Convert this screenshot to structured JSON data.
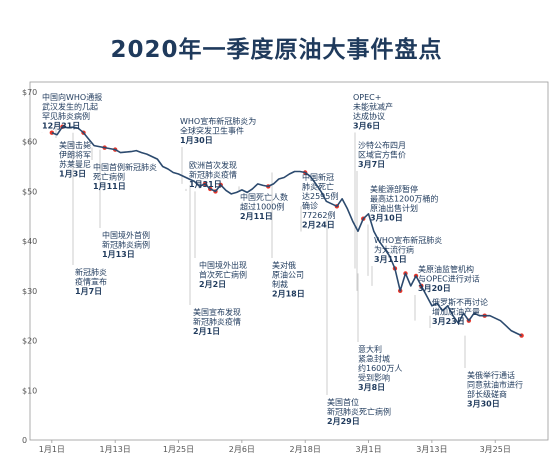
{
  "title": "2020年一季度原油大事件盘点",
  "chart_data": {
    "type": "line",
    "title": "2020年一季度原油大事件盘点",
    "xlabel": "",
    "ylabel": "",
    "y_ticks": [
      "$70",
      "$60",
      "$50",
      "$40",
      "$30",
      "$20",
      "$10",
      "0"
    ],
    "ylim": [
      0,
      72
    ],
    "x_ticks": [
      {
        "label": "1月1日",
        "day": 1
      },
      {
        "label": "1月13日",
        "day": 13
      },
      {
        "label": "1月25日",
        "day": 25
      },
      {
        "label": "2月6日",
        "day": 37
      },
      {
        "label": "2月18日",
        "day": 49
      },
      {
        "label": "3月1日",
        "day": 61
      },
      {
        "label": "3月13日",
        "day": 73
      },
      {
        "label": "3月25日",
        "day": 85
      }
    ],
    "xlim": [
      -2,
      95
    ],
    "line_color": "#2c4a6e",
    "marker_color": "#e8362a",
    "series": [
      {
        "values": [
          [
            1,
            61.8
          ],
          [
            2,
            61.4
          ],
          [
            3,
            63.0
          ],
          [
            4,
            62.8
          ],
          [
            5,
            62.9
          ],
          [
            6,
            62.7
          ],
          [
            7,
            61.8
          ],
          [
            8,
            60.5
          ],
          [
            9,
            59.2
          ],
          [
            10,
            59.0
          ],
          [
            11,
            58.8
          ],
          [
            12,
            58.6
          ],
          [
            13,
            58.4
          ],
          [
            14,
            57.8
          ],
          [
            15,
            57.9
          ],
          [
            16,
            58.0
          ],
          [
            17,
            58.2
          ],
          [
            18,
            57.8
          ],
          [
            19,
            57.5
          ],
          [
            20,
            57.0
          ],
          [
            21,
            56.5
          ],
          [
            22,
            55.0
          ],
          [
            23,
            54.5
          ],
          [
            24,
            53.8
          ],
          [
            25,
            53.5
          ],
          [
            26,
            53.0
          ],
          [
            27,
            52.5
          ],
          [
            28,
            52.0
          ],
          [
            29,
            51.0
          ],
          [
            30,
            51.5
          ],
          [
            31,
            50.5
          ],
          [
            32,
            50.0
          ],
          [
            33,
            51.3
          ],
          [
            34,
            50.2
          ],
          [
            35,
            49.5
          ],
          [
            36,
            49.8
          ],
          [
            37,
            50.3
          ],
          [
            38,
            49.8
          ],
          [
            39,
            50.5
          ],
          [
            40,
            51.5
          ],
          [
            41,
            51.2
          ],
          [
            42,
            51.0
          ],
          [
            43,
            51.5
          ],
          [
            44,
            52.5
          ],
          [
            45,
            52.8
          ],
          [
            46,
            53.5
          ],
          [
            47,
            54.0
          ],
          [
            48,
            54.0
          ],
          [
            49,
            53.8
          ],
          [
            50,
            53.0
          ],
          [
            51,
            51.5
          ],
          [
            52,
            50.0
          ],
          [
            53,
            48.0
          ],
          [
            54,
            47.5
          ],
          [
            55,
            47.0
          ],
          [
            56,
            48.5
          ],
          [
            57,
            46.5
          ],
          [
            58,
            44.0
          ],
          [
            59,
            42.0
          ],
          [
            60,
            44.5
          ],
          [
            61,
            45.5
          ],
          [
            62,
            42.0
          ],
          [
            63,
            40.0
          ],
          [
            64,
            38.5
          ],
          [
            65,
            37.0
          ],
          [
            66,
            34.5
          ],
          [
            67,
            30.0
          ],
          [
            68,
            33.5
          ],
          [
            69,
            31.0
          ],
          [
            70,
            33.0
          ],
          [
            71,
            31.0
          ],
          [
            72,
            29.0
          ],
          [
            73,
            27.0
          ],
          [
            74,
            27.5
          ],
          [
            75,
            26.0
          ],
          [
            76,
            27.0
          ],
          [
            77,
            25.0
          ],
          [
            78,
            23.5
          ],
          [
            79,
            25.5
          ],
          [
            80,
            24.0
          ],
          [
            81,
            25.5
          ],
          [
            82,
            25.0
          ],
          [
            83,
            25.0
          ],
          [
            84,
            25.0
          ],
          [
            85,
            24.5
          ],
          [
            86,
            24.0
          ],
          [
            87,
            23.0
          ],
          [
            88,
            22.0
          ],
          [
            89,
            21.5
          ],
          [
            90,
            21.0
          ]
        ]
      }
    ],
    "events": [
      {
        "day": 1,
        "date": "12月31日",
        "text": [
          "中国向WHO通报",
          "武汉发生的几起",
          "罕见肺炎病例"
        ]
      },
      {
        "day": 3,
        "date": "1月3日",
        "text": [
          "美国击毙",
          "伊朗将军",
          "苏莱曼尼"
        ]
      },
      {
        "day": 7,
        "date": "1月7日",
        "text": [
          "新冠肺炎",
          "疫情宣布"
        ]
      },
      {
        "day": 11,
        "date": "1月11日",
        "text": [
          "中国首例新冠肺炎",
          "死亡病例"
        ]
      },
      {
        "day": 13,
        "date": "1月13日",
        "text": [
          "中国境外首例",
          "新冠肺炎病例"
        ]
      },
      {
        "day": 30,
        "date": "1月30日",
        "text": [
          "WHO宣布新冠肺炎为",
          "全球突发卫生事件"
        ]
      },
      {
        "day": 31,
        "date": "1月31日",
        "text": [
          "欧洲首次发现",
          "新冠肺炎疫情"
        ]
      },
      {
        "day": 32,
        "date": "2月2日",
        "text": [
          "中国境外出现",
          "首次死亡病例"
        ]
      },
      {
        "day": 33,
        "date": "2月1日",
        "text": [
          "美国宣布发现",
          "新冠肺炎疫情"
        ]
      },
      {
        "day": 42,
        "date": "2月11日",
        "text": [
          "中国死亡人数",
          "超过1000例"
        ]
      },
      {
        "day": 49,
        "date": "2月18日",
        "text": [
          "美对俄",
          "原油公司",
          "制裁"
        ]
      },
      {
        "day": 55,
        "date": "2月24日",
        "text": [
          "中国新冠",
          "肺炎死亡",
          "达2595例",
          "确诊",
          "77262例"
        ]
      },
      {
        "day": 60,
        "date": "2月29日",
        "text": [
          "美国首位",
          "新冠肺炎死亡病例"
        ]
      },
      {
        "day": 66,
        "date": "3月6日",
        "text": [
          "OPEC+",
          "未能就减产",
          "达成协议"
        ]
      },
      {
        "day": 67,
        "date": "3月7日",
        "text": [
          "沙特公布四月",
          "区域官方售价"
        ]
      },
      {
        "day": 68,
        "date": "3月8日",
        "text": [
          "意大利",
          "紧急封城",
          "约1600万人",
          "受到影响"
        ]
      },
      {
        "day": 70,
        "date": "3月10日",
        "text": [
          "美能源部暂停",
          "最高达1200万桶的",
          "原油出售计划"
        ]
      },
      {
        "day": 71,
        "date": "3月11日",
        "text": [
          "WHO宣布新冠肺炎",
          "为大流行病"
        ]
      },
      {
        "day": 80,
        "date": "3月20日",
        "text": [
          "美原油监管机构",
          "与OPEC进行对话"
        ]
      },
      {
        "day": 83,
        "date": "3月23日",
        "text": [
          "俄罗斯不再讨论",
          "增加原油产量"
        ]
      },
      {
        "day": 90,
        "date": "3月30日",
        "text": [
          "美俄举行通话",
          "同意就油市进行",
          "部长级磋商"
        ]
      }
    ]
  }
}
